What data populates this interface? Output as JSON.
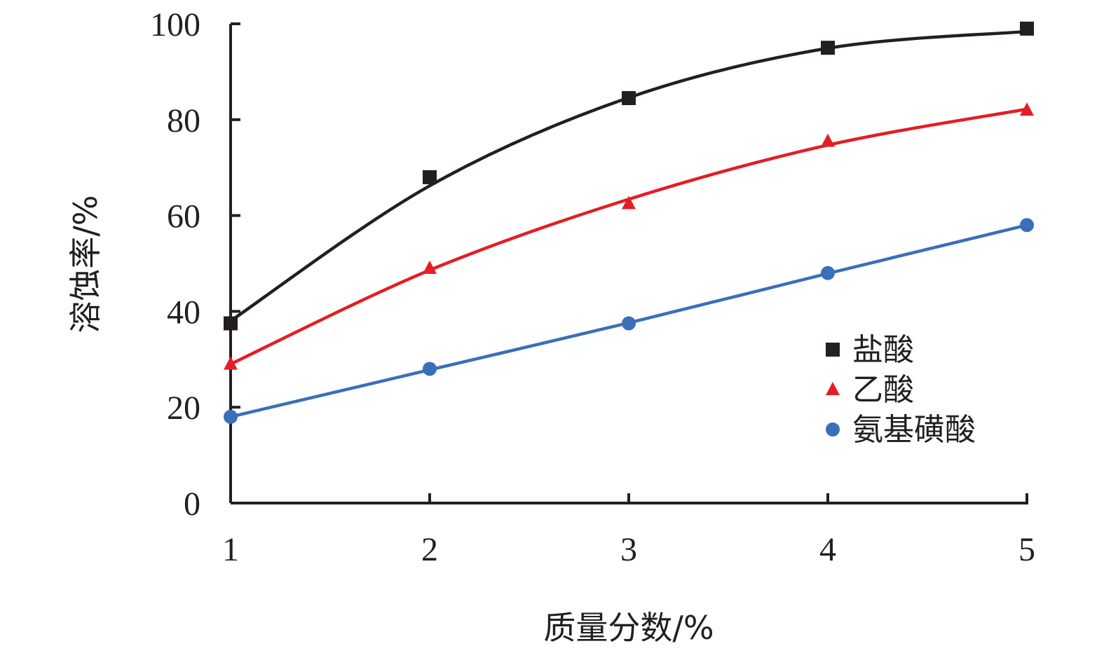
{
  "chart_data": {
    "type": "scatter",
    "xlabel": "质量分数/%",
    "ylabel": "溶蚀率/%",
    "x": [
      1,
      2,
      3,
      4,
      5
    ],
    "xlim": [
      1,
      5
    ],
    "ylim": [
      0,
      100
    ],
    "xticks": [
      "1",
      "2",
      "3",
      "4",
      "5"
    ],
    "yticks": [
      "0",
      "20",
      "40",
      "60",
      "80",
      "100"
    ],
    "grid": false,
    "legend_position": "right",
    "series": [
      {
        "name": "盐酸",
        "values": [
          37.5,
          68.0,
          84.5,
          95.0,
          99.0
        ],
        "fit": [
          38.0,
          66.2,
          84.6,
          94.9,
          98.4
        ],
        "color": "#231f20",
        "marker": "square"
      },
      {
        "name": "乙酸",
        "values": [
          29.0,
          49.0,
          62.5,
          75.5,
          82.0
        ],
        "fit": [
          29.0,
          48.6,
          63.4,
          74.7,
          82.2
        ],
        "color": "#e31e24",
        "marker": "triangle"
      },
      {
        "name": "氨基磺酸",
        "values": [
          18.0,
          28.0,
          37.5,
          48.0,
          58.0
        ],
        "fit": [
          18.0,
          27.8,
          37.6,
          47.9,
          58.0
        ],
        "color": "#3a6fb9",
        "marker": "circle"
      }
    ]
  }
}
